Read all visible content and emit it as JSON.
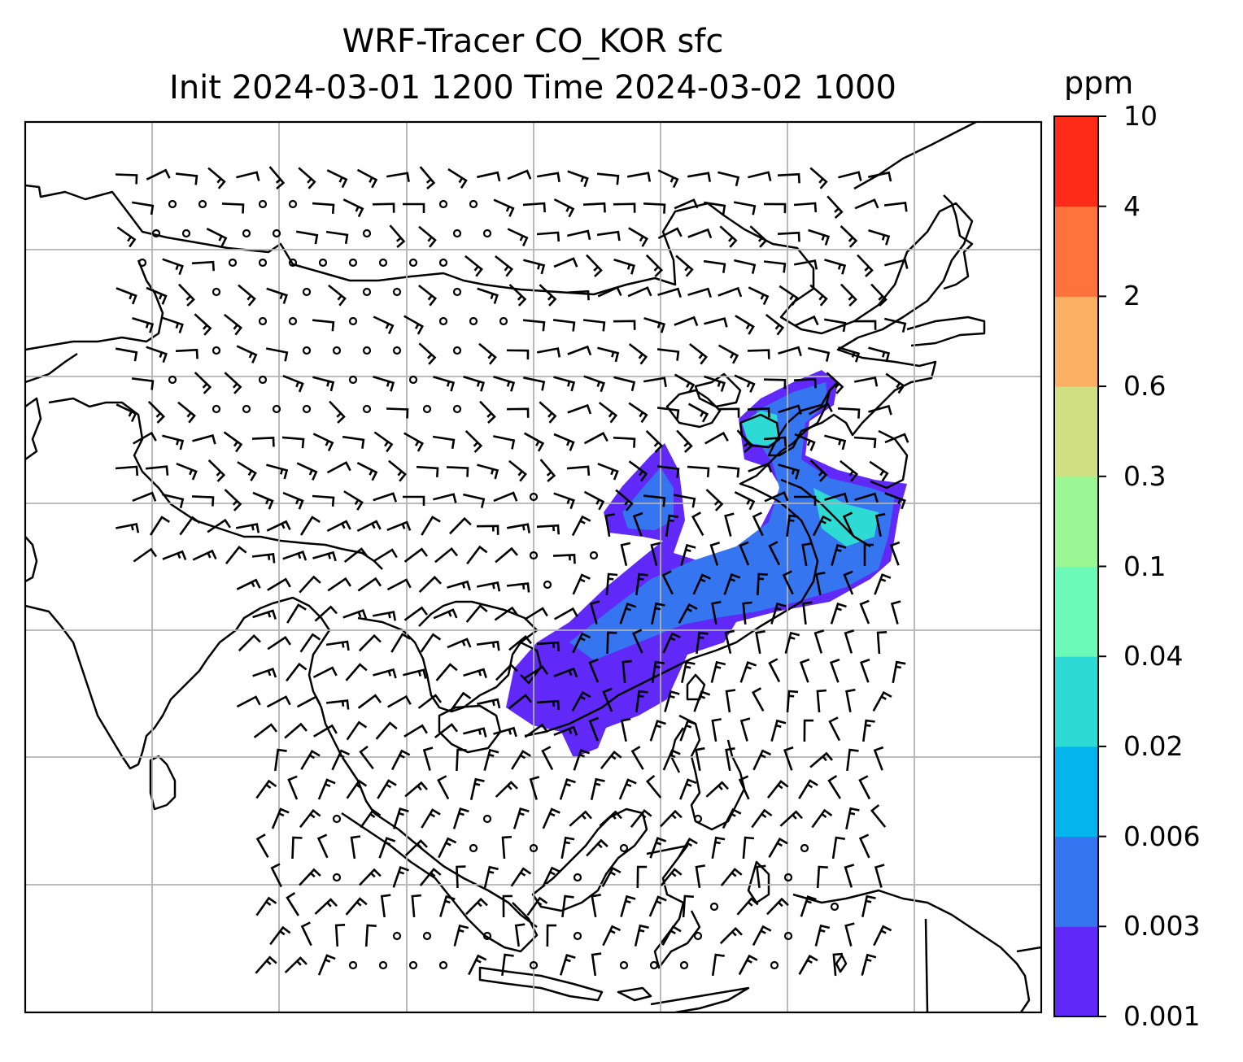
{
  "title_line1": "WRF-Tracer CO_KOR sfc",
  "title_line2": "Init 2024-03-01 1200 Time 2024-03-02 1000",
  "colorbar": {
    "unit": "ppm",
    "levels": [
      "0.001",
      "0.003",
      "0.006",
      "0.02",
      "0.04",
      "0.1",
      "0.3",
      "0.6",
      "2",
      "4",
      "10"
    ],
    "colors": [
      "#6129f8",
      "#3575f0",
      "#04b4ec",
      "#2edbd4",
      "#6cfab9",
      "#9bf794",
      "#cfdf82",
      "#fbb063",
      "#fe723b",
      "#fe2b18"
    ]
  },
  "map": {
    "gridlines": true,
    "features": [
      "coastlines",
      "country borders",
      "wind barbs",
      "tracer concentration contours"
    ],
    "plume_color_low": "#6129f8",
    "plume_color_mid": "#3575f0",
    "plume_color_high": "#2edbd4"
  }
}
